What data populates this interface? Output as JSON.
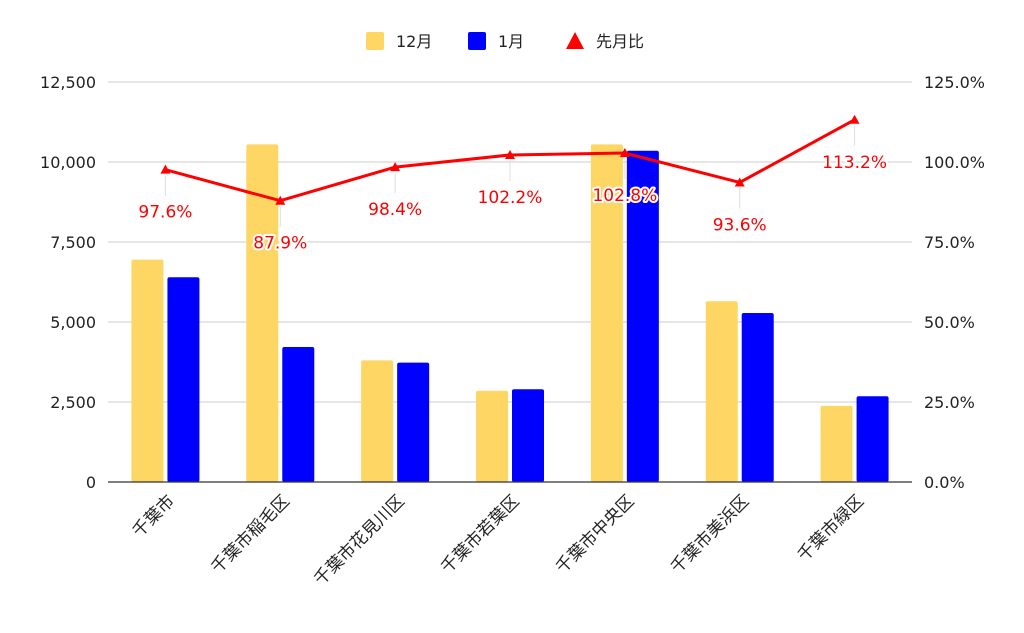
{
  "chart_data": {
    "type": "bar",
    "categories": [
      "千葉市",
      "千葉市稲毛区",
      "千葉市花見川区",
      "千葉市若葉区",
      "千葉市中央区",
      "千葉市美浜区",
      "千葉市緑区"
    ],
    "series": [
      {
        "name": "12月",
        "type": "bar",
        "axis": "left",
        "color": "#fdd663",
        "values": [
          6950,
          10550,
          3800,
          2850,
          10550,
          5650,
          2380
        ]
      },
      {
        "name": "1月",
        "type": "bar",
        "axis": "left",
        "color": "#0000ff",
        "values": [
          6400,
          4220,
          3730,
          2900,
          10350,
          5280,
          2680
        ]
      },
      {
        "name": "先月比",
        "type": "line",
        "axis": "right",
        "color": "#ff0000",
        "values": [
          97.6,
          87.9,
          98.4,
          102.2,
          102.8,
          93.6,
          113.2
        ],
        "labels": [
          "97.6%",
          "87.9%",
          "98.4%",
          "102.2%",
          "102.8%",
          "93.6%",
          "113.2%"
        ]
      }
    ],
    "ylim_left": [
      0,
      12500
    ],
    "ylim_right": [
      0,
      125
    ],
    "left_ticks": [
      "0",
      "2,500",
      "5,000",
      "7,500",
      "10,000",
      "12,500"
    ],
    "right_ticks": [
      "0.0%",
      "25.0%",
      "50.0%",
      "75.0%",
      "100.0%",
      "125.0%"
    ],
    "legend_position": "top",
    "grid": true
  }
}
